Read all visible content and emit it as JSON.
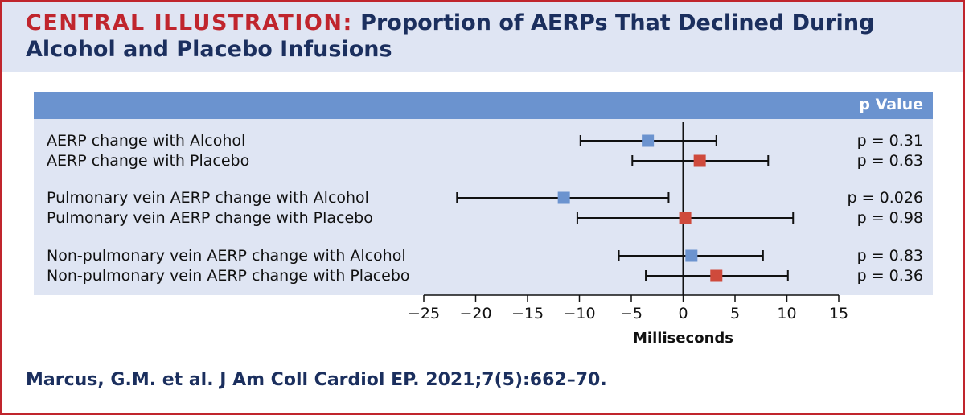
{
  "header": {
    "title_prefix": "CENTRAL ILLUSTRATION:",
    "title_text": "Proportion of AERPs That Declined During Alcohol and Placebo Infusions"
  },
  "table": {
    "pvalue_header": "p Value"
  },
  "citation": "Marcus, G.M. et al. J Am Coll Cardiol EP. 2021;7(5):662–70.",
  "colors": {
    "alcohol": "#6b93cf",
    "placebo": "#cf4a3c",
    "title_accent": "#c0252d",
    "title_main": "#1b2f5e"
  },
  "chart_data": {
    "type": "forest",
    "xlabel": "Milliseconds",
    "xlim": [
      -25,
      15
    ],
    "xticks": [
      -25,
      -20,
      -15,
      -10,
      -5,
      0,
      5,
      10,
      15
    ],
    "xtick_labels": [
      "−25",
      "−20",
      "−15",
      "−10",
      "−5",
      "0",
      "5",
      "10",
      "15"
    ],
    "reference_line": 0,
    "rows": [
      {
        "label": "AERP change with Alcohol",
        "group": "alcohol",
        "estimate": -3.4,
        "ci_low": -9.9,
        "ci_high": 3.2,
        "p_value": "p = 0.31"
      },
      {
        "label": "AERP change with Placebo",
        "group": "placebo",
        "estimate": 1.6,
        "ci_low": -4.9,
        "ci_high": 8.2,
        "p_value": "p = 0.63"
      },
      {
        "label": "Pulmonary vein AERP change with Alcohol",
        "group": "alcohol",
        "estimate": -11.5,
        "ci_low": -21.8,
        "ci_high": -1.4,
        "p_value": "p = 0.026"
      },
      {
        "label": "Pulmonary vein AERP change with Placebo",
        "group": "placebo",
        "estimate": 0.2,
        "ci_low": -10.2,
        "ci_high": 10.6,
        "p_value": "p = 0.98"
      },
      {
        "label": "Non-pulmonary vein AERP change with Alcohol",
        "group": "alcohol",
        "estimate": 0.8,
        "ci_low": -6.2,
        "ci_high": 7.7,
        "p_value": "p = 0.83"
      },
      {
        "label": "Non-pulmonary vein AERP change with Placebo",
        "group": "placebo",
        "estimate": 3.2,
        "ci_low": -3.6,
        "ci_high": 10.1,
        "p_value": "p = 0.36"
      }
    ]
  }
}
